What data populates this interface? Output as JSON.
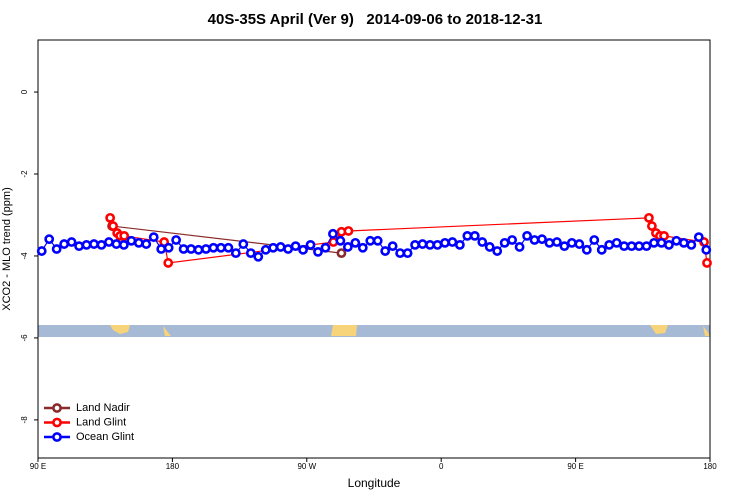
{
  "chart_data": {
    "type": "scatter",
    "title": "40S-35S April (Ver 9)   2014-09-06 to 2018-12-31",
    "x_label": "Longitude",
    "y_label": "XCO2 - MLO trend (ppm)",
    "xlim": [
      90,
      540
    ],
    "ylim": [
      -8.93,
      1.27
    ],
    "xticks": [
      {
        "value": 90,
        "label": "90 E"
      },
      180,
      {
        "value": 270,
        "label": "90 W"
      },
      {
        "value": 360,
        "label": "0"
      },
      {
        "value": 450,
        "label": "90 E"
      },
      {
        "value": 540,
        "label": "180"
      }
    ],
    "yticks": [
      0,
      -2,
      -4,
      -6,
      -8
    ],
    "legend": "bottom-left",
    "series": [
      {
        "name": "Land Nadir",
        "color": "#8b2a2a",
        "line": true,
        "x": [
          139.6,
          293.2
        ],
        "values": [
          -3.27,
          -3.93
        ]
      },
      {
        "name": "Land Glint",
        "color": "#ff0000",
        "line": true,
        "x": [
          138.3,
          140.3,
          143.0,
          145.0,
          147.7,
          174.5,
          177.2,
          287.8,
          293.2,
          297.9,
          499.1,
          501.1,
          503.8,
          506.5,
          509.2,
          536.0,
          538.0
        ],
        "values": [
          -3.07,
          -3.27,
          -3.44,
          -3.51,
          -3.51,
          -3.66,
          -4.17,
          -3.66,
          -3.41,
          -3.39,
          -3.07,
          -3.27,
          -3.44,
          -3.51,
          -3.51,
          -3.66,
          -4.17
        ]
      },
      {
        "name": "Ocean Glint",
        "color": "#0000ff",
        "line": true,
        "x": [
          92.5,
          97.5,
          102.5,
          107.5,
          112.5,
          117.5,
          122.5,
          127.5,
          132.5,
          137.5,
          142.5,
          147.5,
          152.5,
          157.5,
          162.5,
          167.5,
          172.5,
          177.5,
          182.5,
          187.5,
          192.5,
          197.5,
          202.5,
          207.5,
          212.5,
          217.5,
          222.5,
          227.5,
          232.5,
          237.5,
          242.5,
          247.5,
          252.5,
          257.5,
          262.5,
          267.5,
          272.5,
          277.5,
          282.5,
          287.5,
          292.5,
          297.5,
          302.5,
          307.5,
          312.5,
          317.5,
          322.5,
          327.5,
          332.5,
          337.5,
          342.5,
          347.5,
          352.5,
          357.5,
          362.5,
          367.5,
          372.5,
          377.5,
          382.5,
          387.5,
          392.5,
          397.5,
          402.5,
          407.5,
          412.5,
          417.5,
          422.5,
          427.5,
          432.5,
          437.5,
          442.5,
          447.5,
          452.5,
          457.5,
          462.5,
          467.5,
          472.5,
          477.5,
          482.5,
          487.5,
          492.5,
          497.5,
          502.5,
          507.5,
          512.5,
          517.5,
          522.5,
          527.5,
          532.5,
          537.5
        ],
        "values": [
          -3.88,
          -3.59,
          -3.83,
          -3.71,
          -3.66,
          -3.76,
          -3.73,
          -3.71,
          -3.73,
          -3.66,
          -3.71,
          -3.73,
          -3.63,
          -3.68,
          -3.71,
          -3.54,
          -3.83,
          -3.8,
          -3.61,
          -3.83,
          -3.83,
          -3.85,
          -3.83,
          -3.8,
          -3.8,
          -3.8,
          -3.93,
          -3.71,
          -3.93,
          -4.02,
          -3.85,
          -3.8,
          -3.78,
          -3.83,
          -3.76,
          -3.85,
          -3.73,
          -3.9,
          -3.8,
          -3.46,
          -3.63,
          -3.78,
          -3.68,
          -3.8,
          -3.63,
          -3.63,
          -3.88,
          -3.76,
          -3.93,
          -3.93,
          -3.73,
          -3.71,
          -3.73,
          -3.73,
          -3.68,
          -3.66,
          -3.73,
          -3.51,
          -3.51,
          -3.66,
          -3.78,
          -3.88,
          -3.68,
          -3.61,
          -3.78,
          -3.51,
          -3.61,
          -3.59,
          -3.68,
          -3.66,
          -3.76,
          -3.68,
          -3.71,
          -3.85,
          -3.61,
          -3.85,
          -3.73,
          -3.68,
          -3.76,
          -3.76,
          -3.76,
          -3.76,
          -3.68,
          -3.68,
          -3.73,
          -3.63,
          -3.68,
          -3.73,
          -3.54,
          -3.85
        ]
      }
    ]
  }
}
